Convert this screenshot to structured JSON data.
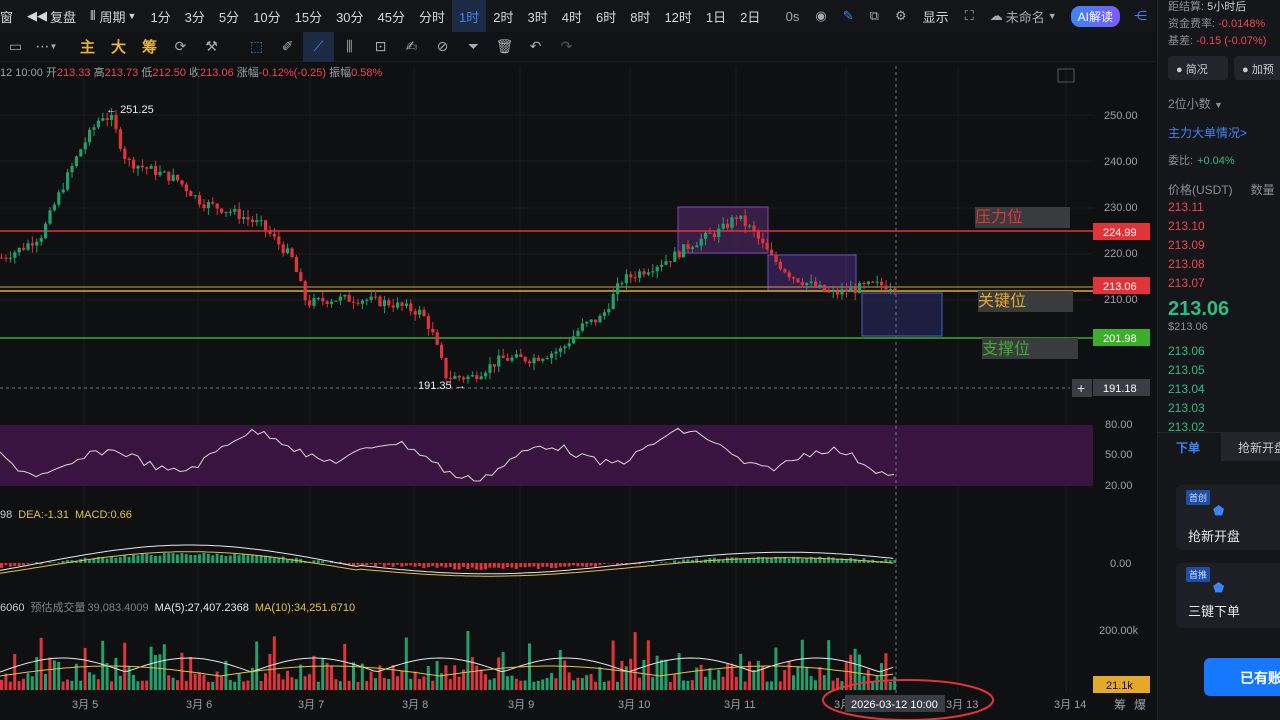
{
  "toolbar": {
    "window_label": "窗",
    "replay_label": "复盘",
    "period_label": "周期",
    "timeframes": [
      "1分",
      "3分",
      "5分",
      "10分",
      "15分",
      "30分",
      "45分",
      "分时",
      "1时",
      "2时",
      "3时",
      "4时",
      "6时",
      "8时",
      "12时",
      "1日",
      "2日"
    ],
    "active_timeframe": "1时",
    "countdown": "0s",
    "display_label": "显示",
    "unnamed_label": "未命名",
    "ai_label": "AI解读"
  },
  "drawing_toolbar": {
    "main_label": "主",
    "big_label": "大",
    "chip_label": "筹"
  },
  "ohlc": {
    "time": "12 10:00",
    "open_label": "开",
    "open": "213.33",
    "high_label": "高",
    "high": "213.73",
    "low_label": "低",
    "low": "212.50",
    "close_label": "收",
    "close": "213.06",
    "change_label": "涨幅",
    "change": "-0.12%(-0.25)",
    "amp_label": "振幅",
    "amp": "0.58%"
  },
  "chart_data": {
    "type": "candlestick",
    "symbol_quote": "USDT",
    "y_ticks": [
      "250.00",
      "240.00",
      "230.00",
      "220.00",
      "210.00"
    ],
    "x_ticks": [
      "3月 5",
      "3月 6",
      "3月 7",
      "3月 8",
      "3月 9",
      "3月 10",
      "3月 11",
      "3月",
      "3月 13",
      "3月 14"
    ],
    "high_marker": "251.25",
    "low_marker": "191.35",
    "levels": [
      {
        "price": "224.99",
        "label": "压力位",
        "color": "#e0343a"
      },
      {
        "price": "213.06",
        "label": "",
        "color": "#e5a92a"
      },
      {
        "price": "201.98",
        "label": "支撑位",
        "color": "#3cae2a"
      },
      {
        "price": "191.18",
        "label": "",
        "color": "#5b6270"
      }
    ],
    "key_label": "关键位",
    "rsi_ticks": [
      "80.00",
      "50.00",
      "20.00"
    ],
    "macd": {
      "dea_label": "DEA:",
      "dea": "-1.31",
      "macd_label": "MACD:",
      "macd": "0.66",
      "left": "98",
      "zero": "0.00"
    },
    "volume": {
      "left": "6060",
      "pred_label": "预估成交量",
      "pred": "39,083.4009",
      "ma5_label": "MA(5):",
      "ma5": "27,407.2368",
      "ma10_label": "MA(10):",
      "ma10": "34,251.6710",
      "tick": "200.00k",
      "current": "21.1k"
    },
    "crosshair_time": "2026-03-12 10:00",
    "bottom_right": [
      "筹",
      "爆"
    ]
  },
  "right_panel": {
    "settle_label": "距结算",
    "settle": "5小时后",
    "funding_label": "资金费率",
    "funding": "-0.0148%",
    "diff_label": "基差",
    "diff": "-0.15 (-0.07%)",
    "tab1": "简况",
    "tab2": "加预",
    "decimals": "2位小数",
    "big_orders": "主力大单情况",
    "ratio_label": "委比:",
    "ratio": "+0.04%",
    "price_header": "价格(USDT)",
    "qty_header": "数量",
    "asks": [
      "213.11",
      "213.10",
      "213.09",
      "213.08",
      "213.07"
    ],
    "last": "213.06",
    "last_usd": "$213.06",
    "bids": [
      "213.06",
      "213.05",
      "213.04",
      "213.03",
      "213.02"
    ],
    "order_tab": "下单",
    "grab_tab": "抢新开盘",
    "badge1": "首创",
    "feature1": "抢新开盘",
    "badge2": "首推",
    "feature2": "三键下单",
    "account_btn": "已有账"
  }
}
